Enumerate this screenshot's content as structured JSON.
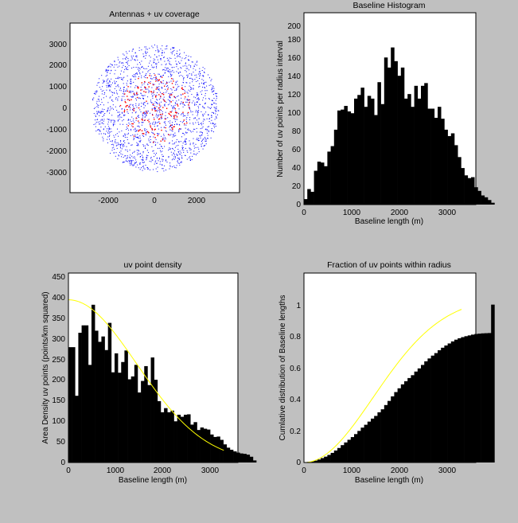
{
  "figure": {
    "background": "#c0c0c0"
  },
  "chart_data": [
    {
      "type": "scatter",
      "title": "Antennas + uv coverage",
      "xlabel": "",
      "ylabel": "",
      "xlim": [
        -4000,
        4000
      ],
      "ylim": [
        -4000,
        4000
      ],
      "xticks": [
        "-2000",
        "0",
        "2000"
      ],
      "yticks": [
        "3000",
        "2000",
        "1000",
        "0",
        "-1000",
        "-2000",
        "-3000"
      ],
      "grid": false,
      "series": [
        {
          "marker": "dot",
          "color": "#0000ff",
          "extent_radius": 3000,
          "count": 1800
        },
        {
          "marker": "dot",
          "color": "#ff0000",
          "extent_radius": 1650,
          "count": 170
        }
      ]
    },
    {
      "type": "bar",
      "title": "Baseline Histogram",
      "xlabel": "Baseline length (m)",
      "ylabel": "Number of uv points  per radius interval",
      "xlim": [
        0,
        3600
      ],
      "ylim": [
        0,
        210
      ],
      "xticks": [
        "0",
        "1000",
        "2000",
        "3000"
      ],
      "yticks": [
        "0",
        "20",
        "40",
        "60",
        "80",
        "100",
        "120",
        "140",
        "160",
        "180",
        "200"
      ],
      "bin_width": 70,
      "color": "#000000",
      "values": [
        6,
        17,
        14,
        37,
        47,
        46,
        42,
        58,
        64,
        82,
        103,
        104,
        108,
        102,
        100,
        116,
        120,
        128,
        107,
        119,
        116,
        98,
        134,
        110,
        161,
        150,
        172,
        157,
        141,
        150,
        116,
        121,
        107,
        130,
        116,
        130,
        133,
        105,
        105,
        95,
        107,
        94,
        82,
        75,
        78,
        65,
        52,
        40,
        32,
        29,
        30,
        19,
        15,
        10,
        8,
        5,
        2
      ]
    },
    {
      "type": "bar",
      "title": "uv point density",
      "xlabel": "Baseline length (m)",
      "ylabel": "Area Density uv points (points/km squared)",
      "xlim": [
        0,
        3600
      ],
      "ylim": [
        0,
        460
      ],
      "xticks": [
        "0",
        "1000",
        "2000",
        "3000"
      ],
      "yticks": [
        "0",
        "50",
        "100",
        "150",
        "200",
        "250",
        "300",
        "350",
        "400",
        "450"
      ],
      "bin_width": 70,
      "color": "#000000",
      "values": [
        280,
        280,
        162,
        315,
        333,
        333,
        237,
        383,
        320,
        293,
        306,
        273,
        339,
        219,
        265,
        218,
        244,
        272,
        202,
        209,
        237,
        170,
        198,
        234,
        188,
        255,
        201,
        149,
        122,
        132,
        122,
        126,
        100,
        116,
        111,
        116,
        117,
        92,
        98,
        79,
        85,
        82,
        80,
        68,
        62,
        63,
        55,
        44,
        36,
        31,
        27,
        24,
        22,
        21,
        19,
        14,
        5
      ],
      "curve": {
        "color": "#ffff00",
        "peak": 395,
        "sigma": 1450
      }
    },
    {
      "type": "bar",
      "title": "Fraction of uv points within radius",
      "xlabel": "Baseline length (m)",
      "ylabel": "Cumlative distribution of Baseline lengths",
      "xlim": [
        0,
        3600
      ],
      "ylim": [
        0,
        1.2
      ],
      "xticks": [
        "0",
        "1000",
        "2000",
        "3000"
      ],
      "yticks": [
        "0",
        "0.2",
        "0.4",
        "0.6",
        "0.8",
        "1"
      ],
      "bin_width": 70,
      "color": "#000000",
      "values": [
        0.001,
        0.004,
        0.007,
        0.012,
        0.019,
        0.028,
        0.037,
        0.048,
        0.061,
        0.076,
        0.092,
        0.11,
        0.127,
        0.144,
        0.161,
        0.18,
        0.2,
        0.221,
        0.239,
        0.259,
        0.278,
        0.295,
        0.318,
        0.337,
        0.364,
        0.39,
        0.419,
        0.446,
        0.47,
        0.495,
        0.515,
        0.535,
        0.553,
        0.576,
        0.596,
        0.618,
        0.641,
        0.659,
        0.677,
        0.693,
        0.711,
        0.727,
        0.741,
        0.754,
        0.767,
        0.778,
        0.787,
        0.794,
        0.8,
        0.805,
        0.81,
        0.814,
        0.816,
        0.818,
        0.819,
        0.82,
        1.0
      ],
      "curve": {
        "color": "#ffff00",
        "end_value": 0.97,
        "sigma": 1450
      }
    }
  ]
}
